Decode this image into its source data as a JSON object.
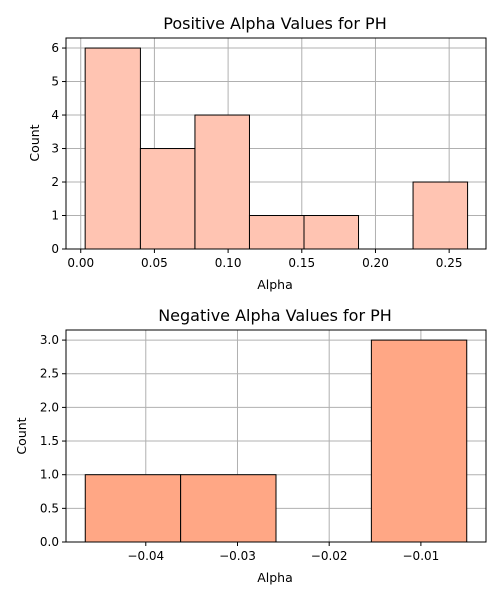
{
  "chart_data": [
    {
      "type": "bar",
      "title": "Positive Alpha Values for PH",
      "xlabel": "Alpha",
      "ylabel": "Count",
      "bin_edges": [
        0.003,
        0.0405,
        0.0775,
        0.1145,
        0.1515,
        0.1885,
        0.2255,
        0.2625
      ],
      "values": [
        6,
        3,
        4,
        1,
        1,
        0,
        2
      ],
      "xlim": [
        -0.01,
        0.275
      ],
      "ylim": [
        0,
        6.3
      ],
      "xticks": [
        0.0,
        0.05,
        0.1,
        0.15,
        0.2,
        0.25
      ],
      "xtick_labels": [
        "0.00",
        "0.05",
        "0.10",
        "0.15",
        "0.20",
        "0.25"
      ],
      "yticks": [
        0,
        1,
        2,
        3,
        4,
        5,
        6
      ],
      "ytick_labels": [
        "0",
        "1",
        "2",
        "3",
        "4",
        "5",
        "6"
      ],
      "bar_color": "#ffc4b2",
      "edge_color": "#000000",
      "grid": true
    },
    {
      "type": "bar",
      "title": "Negative Alpha Values for PH",
      "xlabel": "Alpha",
      "ylabel": "Count",
      "bin_edges": [
        -0.0466,
        -0.0362,
        -0.0258,
        -0.0154,
        -0.005
      ],
      "values": [
        1,
        1,
        0,
        3
      ],
      "xlim": [
        -0.0487,
        -0.0029
      ],
      "ylim": [
        0,
        3.15
      ],
      "xticks": [
        -0.04,
        -0.03,
        -0.02,
        -0.01
      ],
      "xtick_labels": [
        "−0.04",
        "−0.03",
        "−0.02",
        "−0.01"
      ],
      "yticks": [
        0,
        0.5,
        1,
        1.5,
        2,
        2.5,
        3
      ],
      "ytick_labels": [
        "0.0",
        "0.5",
        "1.0",
        "1.5",
        "2.0",
        "2.5",
        "3.0"
      ],
      "bar_color": "#ffa785",
      "edge_color": "#000000",
      "grid": true
    }
  ]
}
